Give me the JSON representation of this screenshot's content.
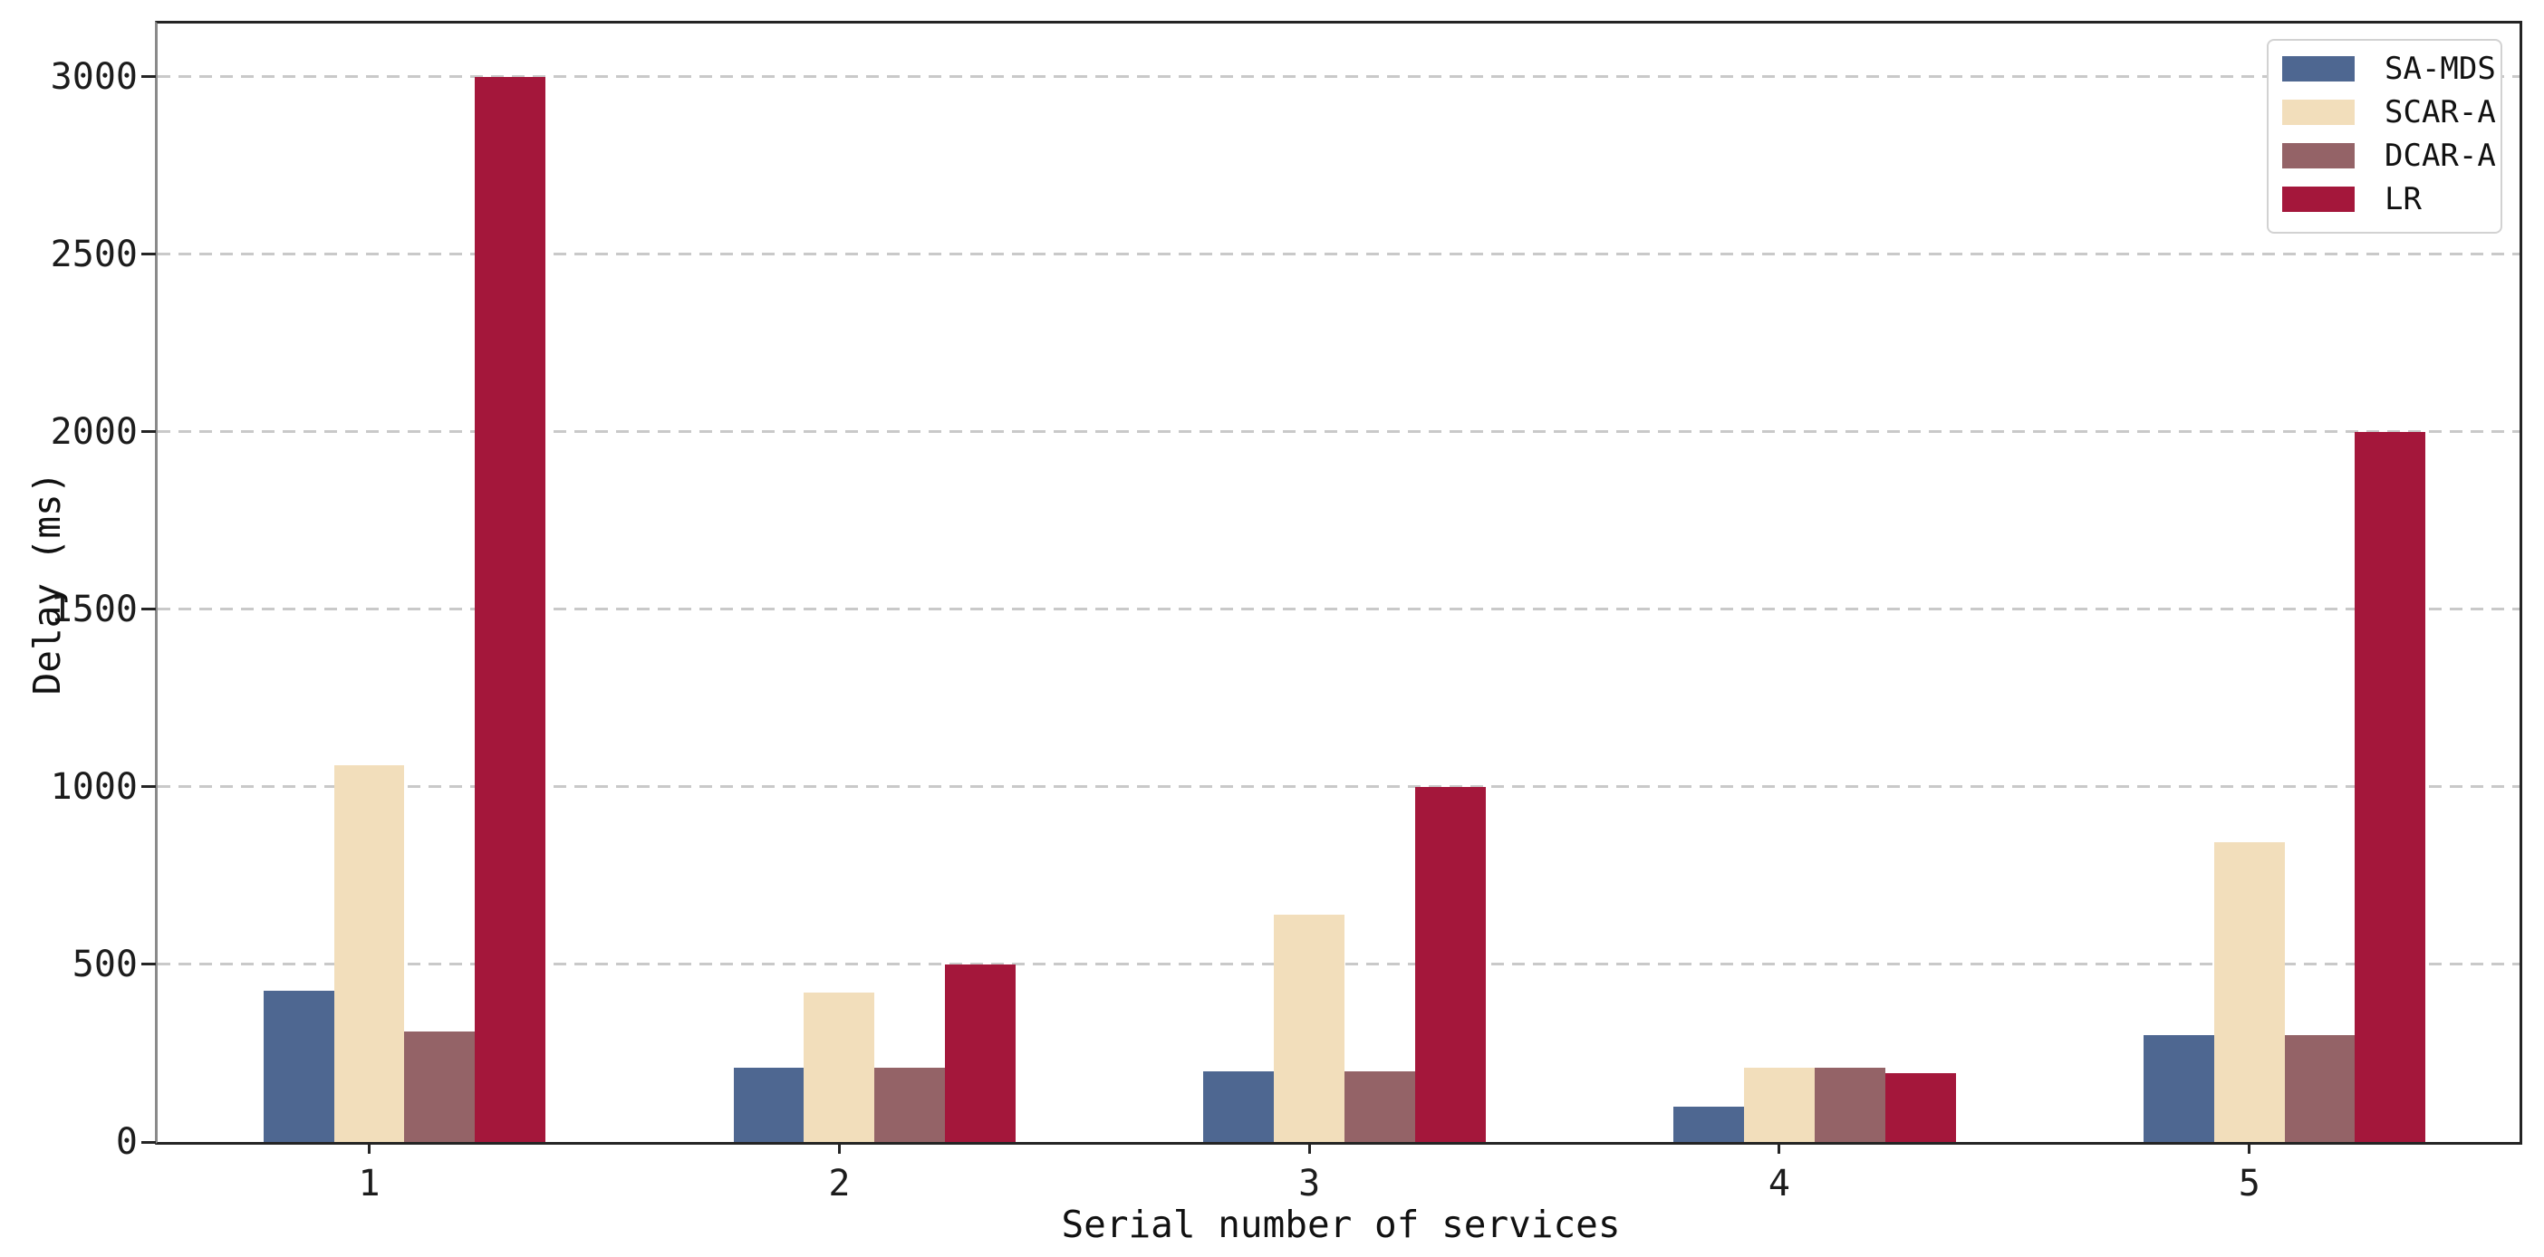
{
  "chart_data": {
    "type": "bar",
    "title": "",
    "xlabel": "Serial number of services",
    "ylabel": "Delay (ms)",
    "categories": [
      "1",
      "2",
      "3",
      "4",
      "5"
    ],
    "series": [
      {
        "name": "SA-MDS",
        "color": "#4E6791",
        "values": [
          425,
          210,
          200,
          100,
          300
        ]
      },
      {
        "name": "SCAR-A",
        "color": "#F2DEBB",
        "values": [
          1060,
          420,
          640,
          210,
          845
        ]
      },
      {
        "name": "DCAR-A",
        "color": "#946367",
        "values": [
          310,
          210,
          200,
          210,
          300
        ]
      },
      {
        "name": "LR",
        "color": "#A4173B",
        "values": [
          3000,
          500,
          1000,
          195,
          2000
        ]
      }
    ],
    "ylim": [
      0,
      3150
    ],
    "yticks": [
      0,
      500,
      1000,
      1500,
      2000,
      2500,
      3000
    ],
    "grid": "horizontal-dashed",
    "legend_position": "upper-right"
  },
  "styles": {
    "background": "#ffffff",
    "grid_color": "#c9c9c9",
    "spine_color": "#242424",
    "left_spine_color": "#8a8a8a",
    "tick_label_color": "#1c1c1c",
    "legend_border_color": "#d2d2d2"
  }
}
